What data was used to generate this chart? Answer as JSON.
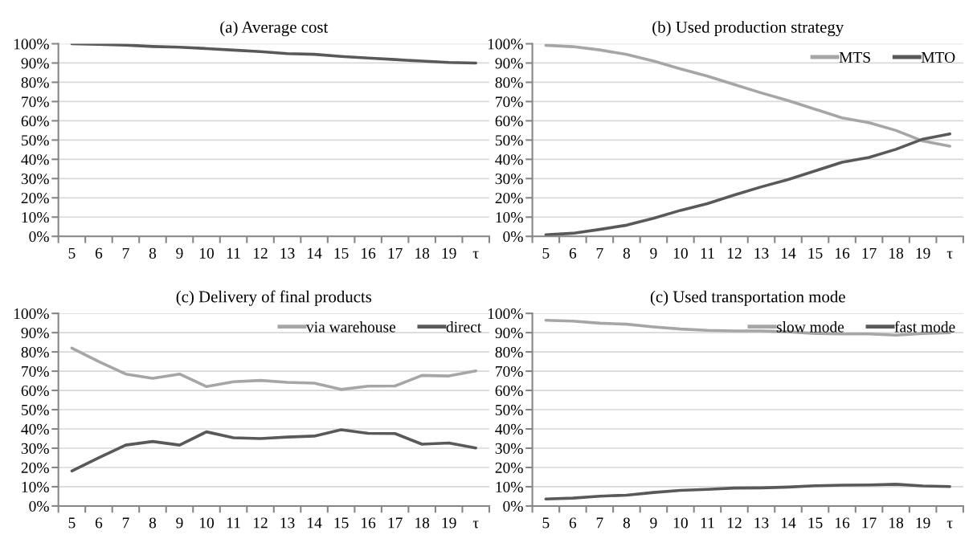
{
  "chart_data": [
    {
      "type": "line",
      "title": "(a) Average cost",
      "categories": [
        "5",
        "6",
        "7",
        "8",
        "9",
        "10",
        "11",
        "12",
        "13",
        "14",
        "15",
        "16",
        "17",
        "18",
        "19",
        "τ"
      ],
      "series": [
        {
          "color": "#595959",
          "values": [
            100,
            99.7,
            99.3,
            98.6,
            98.2,
            97.5,
            96.7,
            95.9,
            94.9,
            94.5,
            93.4,
            92.6,
            91.8,
            91.0,
            90.3,
            90.0
          ]
        }
      ],
      "ylim": [
        0,
        100
      ],
      "yticks": [
        {
          "value": 0,
          "label": "0%"
        },
        {
          "value": 10,
          "label": "10%"
        },
        {
          "value": 20,
          "label": "20%"
        },
        {
          "value": 30,
          "label": "30%"
        },
        {
          "value": 40,
          "label": "40%"
        },
        {
          "value": 50,
          "label": "50%"
        },
        {
          "value": 60,
          "label": "60%"
        },
        {
          "value": 70,
          "label": "70%"
        },
        {
          "value": 80,
          "label": "80%"
        },
        {
          "value": 90,
          "label": "90%"
        },
        {
          "value": 100,
          "label": "100%"
        }
      ],
      "grid": "y"
    },
    {
      "type": "line",
      "title": "(b) Used production strategy",
      "categories": [
        "5",
        "6",
        "7",
        "8",
        "9",
        "10",
        "11",
        "12",
        "13",
        "14",
        "15",
        "16",
        "17",
        "18",
        "19",
        "τ"
      ],
      "series": [
        {
          "name": "MTS",
          "color": "#a6a6a6",
          "values": [
            99.2,
            98.5,
            96.8,
            94.5,
            91.0,
            87.0,
            83.2,
            78.8,
            74.5,
            70.5,
            66.0,
            61.5,
            59.0,
            55.0,
            49.5,
            46.8
          ]
        },
        {
          "name": "MTO",
          "color": "#595959",
          "values": [
            0.8,
            1.6,
            3.6,
            5.8,
            9.4,
            13.5,
            17.0,
            21.5,
            25.7,
            29.5,
            34.0,
            38.5,
            41.0,
            45.2,
            50.5,
            53.2
          ]
        }
      ],
      "ylim": [
        0,
        100
      ],
      "yticks": [
        {
          "value": 0,
          "label": "0%"
        },
        {
          "value": 10,
          "label": "10%"
        },
        {
          "value": 20,
          "label": "20%"
        },
        {
          "value": 30,
          "label": "30%"
        },
        {
          "value": 40,
          "label": "40%"
        },
        {
          "value": 50,
          "label": "50%"
        },
        {
          "value": 60,
          "label": "60%"
        },
        {
          "value": 70,
          "label": "70%"
        },
        {
          "value": 80,
          "label": "80%"
        },
        {
          "value": 90,
          "label": "90%"
        },
        {
          "value": 100,
          "label": "100%"
        }
      ],
      "grid": "y",
      "legend": "top right"
    },
    {
      "type": "line",
      "title": "(c) Delivery of final products",
      "categories": [
        "5",
        "6",
        "7",
        "8",
        "9",
        "10",
        "11",
        "12",
        "13",
        "14",
        "15",
        "16",
        "17",
        "18",
        "19",
        "τ"
      ],
      "series": [
        {
          "name": "via warehouse",
          "color": "#a6a6a6",
          "values": [
            82,
            75,
            68.5,
            66.3,
            68.5,
            62,
            64.5,
            65.2,
            64.2,
            63.8,
            60.5,
            62.2,
            62.3,
            67.8,
            67.5,
            70.1
          ]
        },
        {
          "name": "direct",
          "color": "#595959",
          "values": [
            18.2,
            25,
            31.6,
            33.5,
            31.6,
            38.5,
            35.4,
            35,
            35.8,
            36.3,
            39.6,
            37.7,
            37.6,
            32.1,
            32.7,
            30.1
          ]
        }
      ],
      "ylim": [
        0,
        100
      ],
      "yticks": [
        {
          "value": 0,
          "label": "0%"
        },
        {
          "value": 10,
          "label": "10%"
        },
        {
          "value": 20,
          "label": "20%"
        },
        {
          "value": 30,
          "label": "30%"
        },
        {
          "value": 40,
          "label": "40%"
        },
        {
          "value": 50,
          "label": "50%"
        },
        {
          "value": 60,
          "label": "60%"
        },
        {
          "value": 70,
          "label": "70%"
        },
        {
          "value": 80,
          "label": "80%"
        },
        {
          "value": 90,
          "label": "90%"
        },
        {
          "value": 100,
          "label": "100%"
        }
      ],
      "grid": "y",
      "legend": "top right"
    },
    {
      "type": "line",
      "title": "(c) Used transportation mode",
      "categories": [
        "5",
        "6",
        "7",
        "8",
        "9",
        "10",
        "11",
        "12",
        "13",
        "14",
        "15",
        "16",
        "17",
        "18",
        "19",
        "τ"
      ],
      "series": [
        {
          "name": "slow mode",
          "color": "#a6a6a6",
          "values": [
            96.4,
            96,
            94.9,
            94.4,
            93,
            91.9,
            91.2,
            90.9,
            90.9,
            90.4,
            89.6,
            89.3,
            89.3,
            88.7,
            89.6,
            90
          ]
        },
        {
          "name": "fast mode",
          "color": "#595959",
          "values": [
            3.6,
            4.1,
            5.1,
            5.6,
            7,
            8.1,
            8.6,
            9.3,
            9.4,
            9.8,
            10.5,
            10.8,
            10.9,
            11.3,
            10.4,
            10.1
          ]
        }
      ],
      "ylim": [
        0,
        100
      ],
      "yticks": [
        {
          "value": 0,
          "label": "0%"
        },
        {
          "value": 10,
          "label": "10%"
        },
        {
          "value": 20,
          "label": "20%"
        },
        {
          "value": 30,
          "label": "30%"
        },
        {
          "value": 40,
          "label": "40%"
        },
        {
          "value": 50,
          "label": "50%"
        },
        {
          "value": 60,
          "label": "60%"
        },
        {
          "value": 70,
          "label": "70%"
        },
        {
          "value": 80,
          "label": "80%"
        },
        {
          "value": 90,
          "label": "90%"
        },
        {
          "value": 100,
          "label": "100%"
        }
      ],
      "grid": "y",
      "legend": "top right"
    }
  ]
}
